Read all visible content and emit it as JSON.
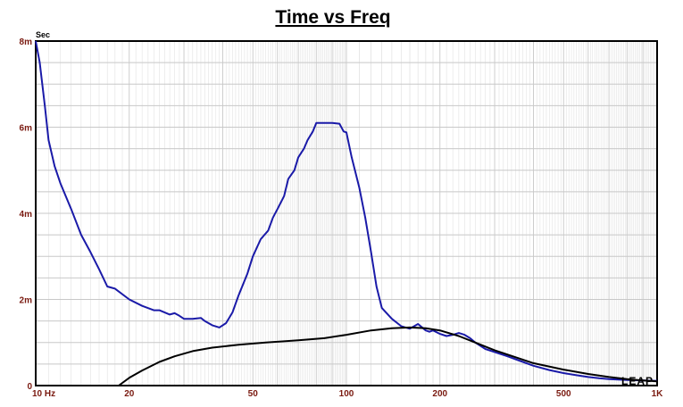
{
  "chart_data": {
    "type": "line",
    "title": "Time vs Freq",
    "ylabel_unit": "Sec",
    "x_scale": "log",
    "xlim": [
      10,
      1000
    ],
    "ylim": [
      0,
      0.008
    ],
    "x_ticks": [
      {
        "value": 10,
        "label": "10  Hz"
      },
      {
        "value": 20,
        "label": "20"
      },
      {
        "value": 50,
        "label": "50"
      },
      {
        "value": 100,
        "label": "100"
      },
      {
        "value": 200,
        "label": "200"
      },
      {
        "value": 500,
        "label": "500"
      },
      {
        "value": 1000,
        "label": "1K"
      }
    ],
    "y_ticks": [
      {
        "value": 0,
        "label": "0"
      },
      {
        "value": 0.002,
        "label": "2m"
      },
      {
        "value": 0.004,
        "label": "4m"
      },
      {
        "value": 0.006,
        "label": "6m"
      },
      {
        "value": 0.008,
        "label": "8m"
      }
    ],
    "grid": true,
    "logo_text": "LEAP",
    "colors": {
      "series_1": "#1a1aa8",
      "series_2": "#000000",
      "tick_text": "#7a1a10",
      "grid": "#c8c8c8"
    },
    "series": [
      {
        "x": [
          10,
          10.3,
          10.7,
          11,
          11.5,
          12,
          13,
          14,
          15,
          16,
          17,
          18,
          20,
          22,
          24,
          25,
          27,
          28,
          29,
          30,
          32,
          34,
          35,
          37,
          39,
          41,
          43,
          45,
          48,
          50,
          53,
          56,
          58,
          60,
          63,
          65,
          68,
          70,
          73,
          75,
          78,
          80,
          83,
          85,
          90,
          95,
          98,
          100,
          104,
          110,
          115,
          120,
          125,
          130,
          140,
          150,
          160,
          170,
          180,
          185,
          190,
          200,
          210,
          220,
          230,
          240,
          250,
          260,
          280,
          300,
          330,
          360,
          400,
          450,
          500,
          550,
          600,
          650,
          700,
          800,
          900,
          1000
        ],
        "y": [
          0.008,
          0.0075,
          0.0065,
          0.0057,
          0.0051,
          0.0047,
          0.0041,
          0.0035,
          0.0031,
          0.0027,
          0.0023,
          0.00225,
          0.002,
          0.00185,
          0.00175,
          0.00175,
          0.00165,
          0.00168,
          0.00162,
          0.00155,
          0.00155,
          0.00157,
          0.0015,
          0.0014,
          0.00135,
          0.00145,
          0.0017,
          0.0021,
          0.0026,
          0.003,
          0.0034,
          0.0036,
          0.0039,
          0.0041,
          0.0044,
          0.0048,
          0.005,
          0.0053,
          0.0055,
          0.0057,
          0.0059,
          0.0061,
          0.0061,
          0.0061,
          0.0061,
          0.00608,
          0.0059,
          0.00588,
          0.0053,
          0.0046,
          0.0039,
          0.0031,
          0.0023,
          0.0018,
          0.00155,
          0.00138,
          0.00132,
          0.00143,
          0.00128,
          0.00125,
          0.00128,
          0.0012,
          0.00115,
          0.00118,
          0.00122,
          0.00118,
          0.0011,
          0.001,
          0.00085,
          0.00078,
          0.00068,
          0.00058,
          0.00046,
          0.00036,
          0.00029,
          0.00024,
          0.0002,
          0.00017,
          0.00015,
          0.00013,
          0.00012,
          0.00011
        ]
      },
      {
        "x": [
          18.5,
          20,
          22,
          25,
          28,
          32,
          37,
          45,
          55,
          70,
          85,
          100,
          120,
          140,
          160,
          180,
          200,
          230,
          260,
          300,
          350,
          400,
          500,
          600,
          700,
          800,
          900,
          1000
        ],
        "y": [
          0,
          0.00018,
          0.00035,
          0.00055,
          0.00068,
          0.0008,
          0.00088,
          0.00095,
          0.001,
          0.00105,
          0.0011,
          0.00118,
          0.00128,
          0.00133,
          0.00135,
          0.00133,
          0.00128,
          0.00115,
          0.001,
          0.00082,
          0.00066,
          0.00052,
          0.00037,
          0.00027,
          0.0002,
          0.00015,
          0.00012,
          0.0001
        ]
      }
    ]
  }
}
